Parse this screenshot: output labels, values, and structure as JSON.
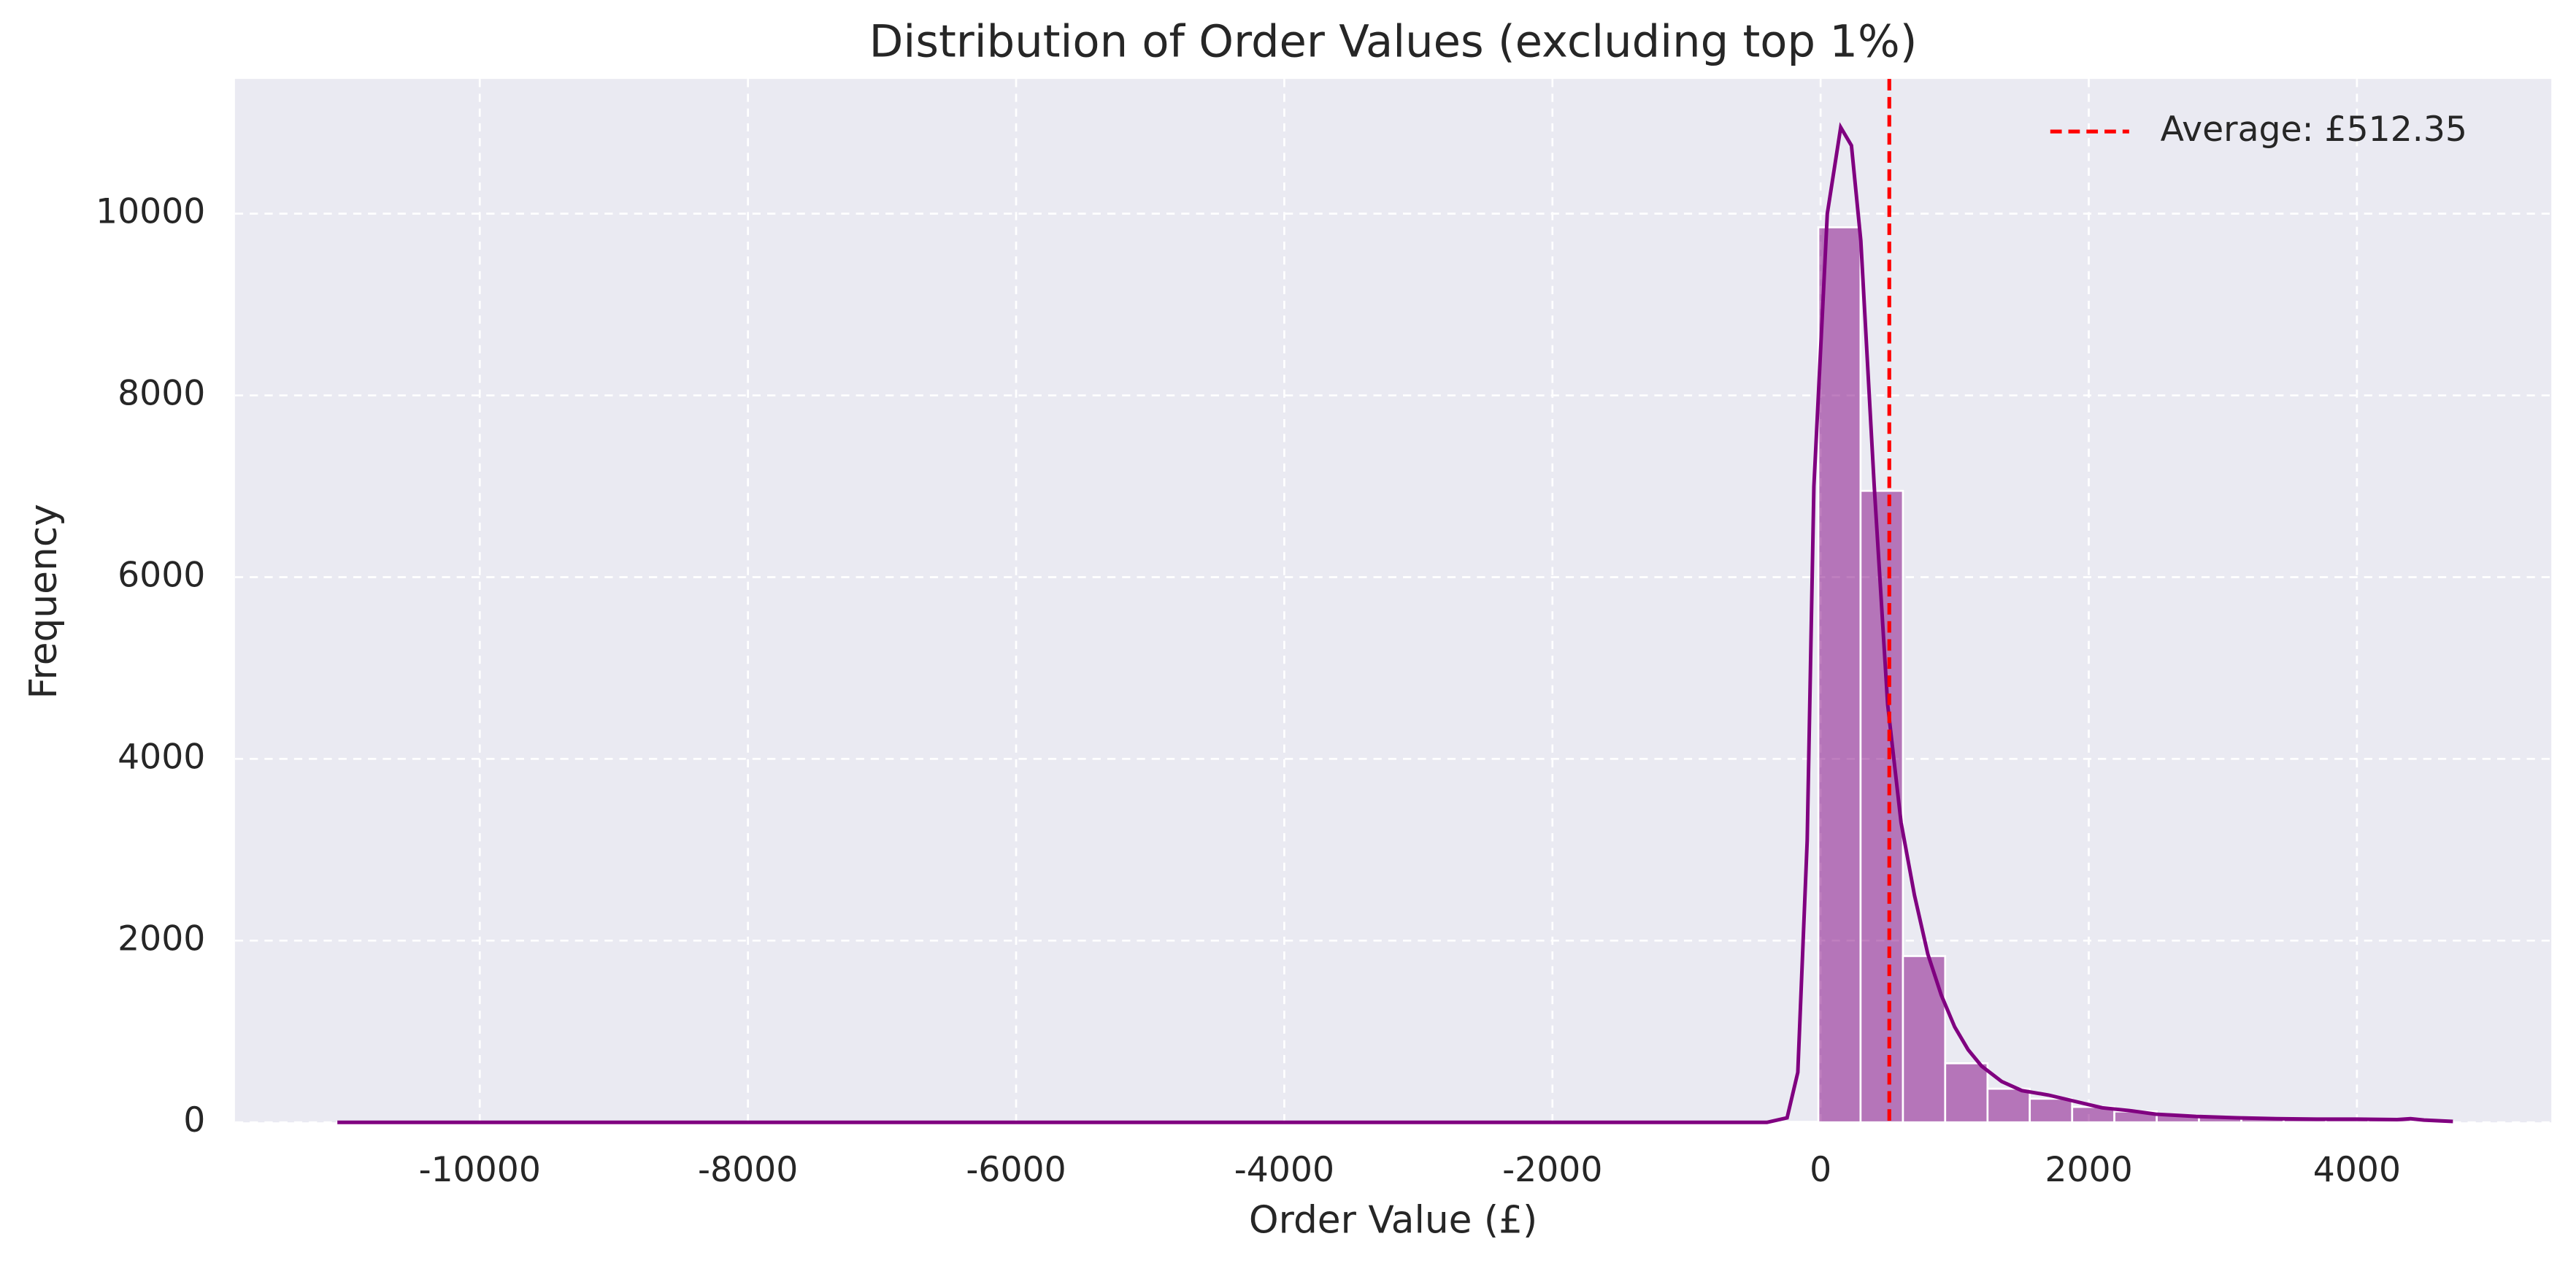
{
  "chart_data": {
    "type": "histogram",
    "title": "Distribution of Order Values (excluding top 1%)",
    "xlabel": "Order Value (£)",
    "ylabel": "Frequency",
    "bins": [
      -11062,
      -10746,
      -10431,
      -10115,
      -9800,
      -9484,
      -9169,
      -8853,
      -8537,
      -8222,
      -7906,
      -7591,
      -7275,
      -6960,
      -6644,
      -6328,
      -6013,
      -5697,
      -5382,
      -5066,
      -4751,
      -4435,
      -4119,
      -3804,
      -3488,
      -3173,
      -2857,
      -2542,
      -2226,
      -1910,
      -1595,
      -1279,
      -964,
      -648,
      -333,
      -17,
      298,
      614,
      929,
      1245,
      1560,
      1876,
      2191,
      2507,
      2822,
      3138,
      3454,
      3769,
      4085,
      4400,
      4716
    ],
    "values": [
      1,
      0,
      0,
      0,
      0,
      0,
      0,
      0,
      0,
      0,
      0,
      0,
      0,
      0,
      0,
      0,
      0,
      0,
      0,
      0,
      0,
      0,
      0,
      0,
      0,
      0,
      0,
      0,
      0,
      0,
      0,
      0,
      0,
      0,
      5,
      9850,
      6950,
      1830,
      650,
      370,
      260,
      170,
      120,
      80,
      60,
      45,
      35,
      30,
      25,
      15
    ],
    "color": "#800080",
    "kde": {
      "x": [
        -11062,
        -1000,
        -400,
        -250,
        -170,
        -100,
        -50,
        50,
        150,
        230,
        300,
        400,
        500,
        600,
        700,
        800,
        900,
        1000,
        1100,
        1200,
        1350,
        1500,
        1700,
        1900,
        2100,
        2300,
        2500,
        2800,
        3100,
        3400,
        3700,
        4000,
        4300,
        4400,
        4500,
        4716
      ],
      "y": [
        0,
        0,
        0,
        50,
        550,
        3100,
        7000,
        10000,
        10950,
        10750,
        9700,
        7000,
        4600,
        3300,
        2500,
        1850,
        1400,
        1050,
        800,
        620,
        450,
        350,
        300,
        230,
        160,
        130,
        90,
        65,
        50,
        40,
        35,
        35,
        30,
        40,
        25,
        10
      ]
    },
    "mean": {
      "value": 512.35,
      "label": "Average: £512.35",
      "color": "#ff0000"
    },
    "xlim": [
      -11826,
      5450
    ],
    "ylim": [
      0,
      11483
    ],
    "xticks": [
      -10000,
      -8000,
      -6000,
      -4000,
      -2000,
      0,
      2000,
      4000
    ],
    "yticks": [
      0,
      2000,
      4000,
      6000,
      8000,
      10000
    ],
    "grid": true,
    "legend": "upper right"
  }
}
